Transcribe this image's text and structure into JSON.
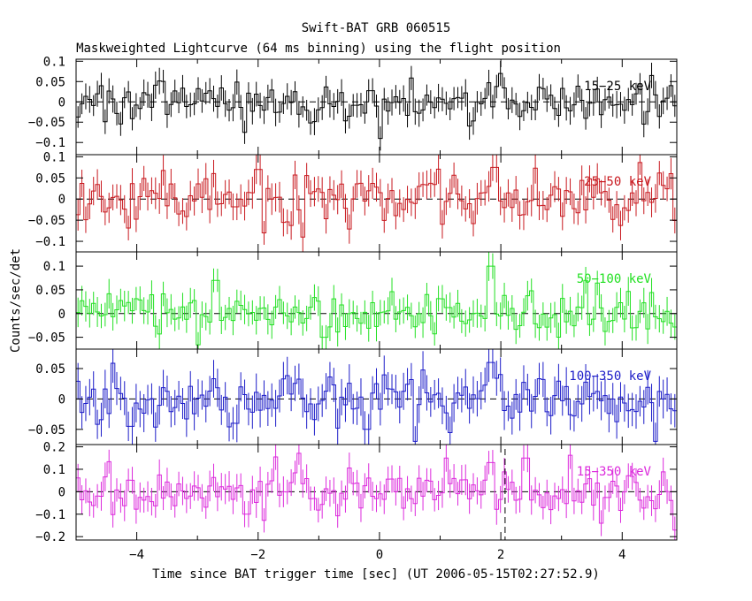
{
  "chart_data": {
    "type": "line",
    "title": "Swift-BAT GRB 060515",
    "subtitle": "Maskweighted Lightcurve (64 ms binning) using the flight position",
    "xlabel": "Time since BAT trigger time [sec] (UT 2006-05-15T02:27:52.9)",
    "ylabel": "Counts/sec/det",
    "xlim": [
      -5.0,
      4.9
    ],
    "x_ticks": [
      -4,
      -2,
      0,
      2,
      4
    ],
    "x_tick_labels": [
      "−4",
      "−2",
      "0",
      "2",
      "4"
    ],
    "binning_sec": 0.064,
    "marker_line_x": 2.07,
    "panels": [
      {
        "band_label": "15−25 keV",
        "color": "#000000",
        "ylim": [
          -0.13,
          0.105
        ],
        "y_ticks": [
          0.1,
          0.05,
          0,
          -0.05,
          -0.1
        ],
        "y_tick_labels": [
          "0.1",
          "0.05",
          "0",
          "−0.05",
          "−0.1"
        ],
        "notable_points": [
          [
            -2.22,
            -0.075
          ],
          [
            -1.14,
            -0.052
          ],
          [
            0.02,
            -0.09
          ],
          [
            2.0,
            0.07
          ],
          [
            4.5,
            0.065
          ]
        ],
        "seed": 101,
        "noise": 0.025,
        "err": 0.03
      },
      {
        "band_label": "25−50 keV",
        "color": "#c8181e",
        "ylim": [
          -0.125,
          0.105
        ],
        "y_ticks": [
          0.1,
          0.05,
          0,
          -0.05,
          -0.1
        ],
        "y_tick_labels": [
          "0.1",
          "0.05",
          "0",
          "−0.05",
          "−0.1"
        ],
        "notable_points": [
          [
            -1.9,
            -0.08
          ],
          [
            -1.25,
            -0.09
          ],
          [
            -2.0,
            0.07
          ],
          [
            1.9,
            0.075
          ],
          [
            4.8,
            0.06
          ]
        ],
        "seed": 202,
        "noise": 0.03,
        "err": 0.033
      },
      {
        "band_label": "50−100 keV",
        "color": "#22e022",
        "ylim": [
          -0.075,
          0.13
        ],
        "y_ticks": [
          0.1,
          0.05,
          0,
          -0.05
        ],
        "y_tick_labels": [
          "0.1",
          "0.05",
          "0",
          "−0.05"
        ],
        "notable_points": [
          [
            -2.7,
            0.07
          ],
          [
            1.83,
            0.1
          ],
          [
            3.4,
            0.07
          ],
          [
            -0.9,
            -0.05
          ]
        ],
        "seed": 303,
        "noise": 0.023,
        "err": 0.028
      },
      {
        "band_label": "100−350 keV",
        "color": "#1c1cc8",
        "ylim": [
          -0.075,
          0.082
        ],
        "y_ticks": [
          0.05,
          0,
          -0.05
        ],
        "y_tick_labels": [
          "0.05",
          "0",
          "−0.05"
        ],
        "notable_points": [
          [
            1.85,
            0.06
          ],
          [
            -0.2,
            -0.05
          ],
          [
            -2.4,
            -0.04
          ],
          [
            -4.1,
            -0.045
          ]
        ],
        "seed": 404,
        "noise": 0.024,
        "err": 0.028
      },
      {
        "band_label": "15−350 keV",
        "color": "#dc2adc",
        "ylim": [
          -0.215,
          0.21
        ],
        "y_ticks": [
          0.2,
          0.1,
          0,
          -0.1,
          -0.2
        ],
        "y_tick_labels": [
          "0.2",
          "0.1",
          "0",
          "−0.1",
          "−0.2"
        ],
        "notable_points": [
          [
            1.1,
            0.15
          ],
          [
            1.85,
            0.13
          ],
          [
            2.4,
            0.15
          ],
          [
            3.65,
            -0.14
          ],
          [
            -2.2,
            -0.1
          ]
        ],
        "seed": 505,
        "noise": 0.055,
        "err": 0.06
      }
    ]
  }
}
